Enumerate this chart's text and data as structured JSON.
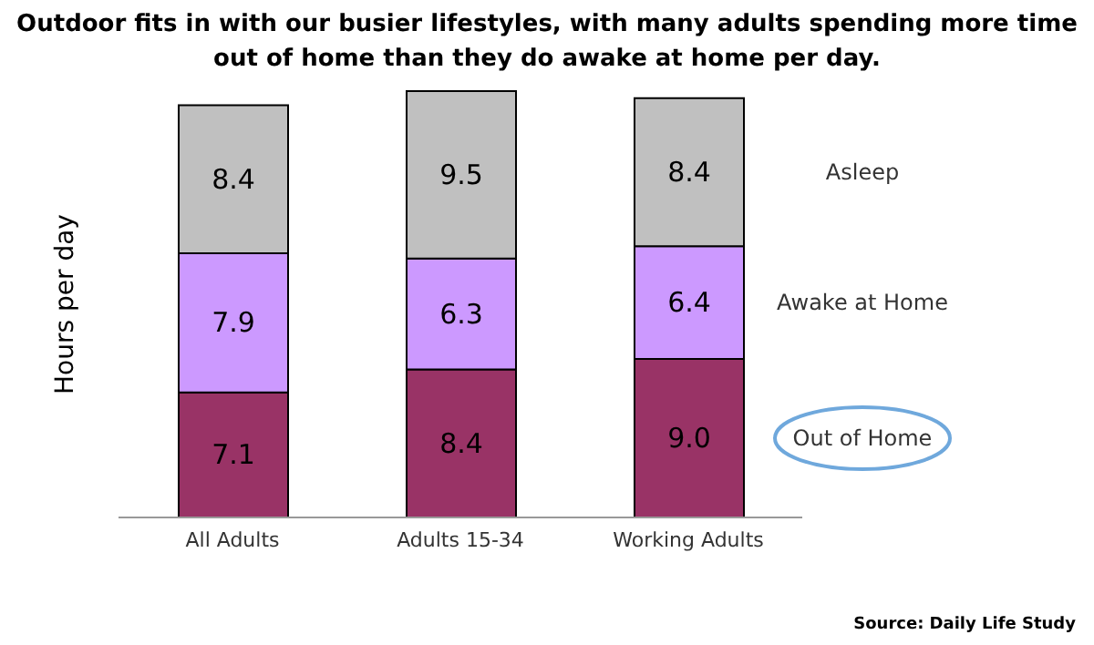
{
  "chart_data": {
    "type": "bar",
    "title": "Outdoor fits in with our busier lifestyles, with many adults spending more time out of home than they do awake at home per day.",
    "ylabel": "Hours per day",
    "categories": [
      "All Adults",
      "Adults 15-34",
      "Working Adults"
    ],
    "stacked": true,
    "legend": false,
    "grid": false,
    "series": [
      {
        "name": "Out of Home",
        "color": "#993366",
        "values": [
          7.1,
          8.4,
          9.0
        ],
        "value_labels": [
          "7.1",
          "8.4",
          "9.0"
        ]
      },
      {
        "name": "Awake at Home",
        "color": "#cc99ff",
        "values": [
          7.9,
          6.3,
          6.4
        ],
        "value_labels": [
          "7.9",
          "6.3",
          "6.4"
        ]
      },
      {
        "name": "Asleep",
        "color": "#c0c0c0",
        "values": [
          8.4,
          9.5,
          8.4
        ],
        "value_labels": [
          "8.4",
          "9.5",
          "8.4"
        ]
      }
    ],
    "annotations": [
      "Source: Daily Life Study"
    ]
  }
}
